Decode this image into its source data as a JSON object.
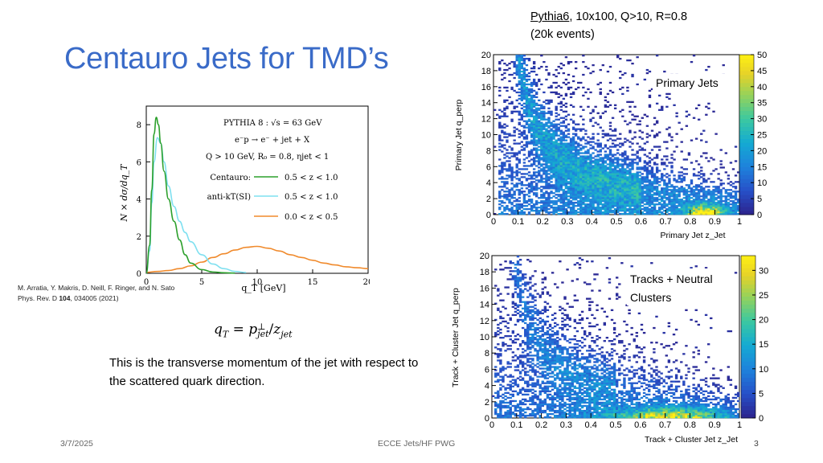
{
  "slide": {
    "title": "Centauro Jets for TMD’s",
    "sim_info": {
      "generator": "Pythia6",
      "line1_rest": ", 10x100, Q>10, R=0.8",
      "line2": "(20k events)"
    },
    "citation": {
      "line1": "M. Arratia, Y. Makris, D. Neill, F. Ringer, and N. Sato",
      "line2_prefix": "Phys. Rev. D ",
      "line2_bold": "104",
      "line2_suffix": ", 034005 (2021)"
    },
    "formula": "q_T = p⊥_jet / z_jet",
    "formula_parts": {
      "lhs": "q",
      "lhs_sub": "T",
      "eq": " = ",
      "p": "p",
      "p_sup": "⊥",
      "p_sub": "jet",
      "slash": "/",
      "z": "z",
      "z_sub": "jet"
    },
    "description": "This is the transverse momentum of the jet with respect to the scattered quark direction.",
    "footer": {
      "date": "3/7/2025",
      "label": "ECCE Jets/HF PWG",
      "page": "3"
    }
  },
  "chart_data": [
    {
      "type": "line",
      "title": "PYTHIA 8 : √s = 63 GeV",
      "annotations": [
        "PYTHIA 8 :  √s = 63 GeV",
        "e⁻p → e⁻ + jet + X",
        "Q > 10 GeV,  R₀ = 0.8,  ηjet < 1"
      ],
      "xlabel": "q_T [GeV]",
      "ylabel": "N × dσ/dq_T",
      "xlim": [
        0,
        20
      ],
      "ylim": [
        0,
        9
      ],
      "x_ticks": [
        0,
        5,
        10,
        15,
        20
      ],
      "y_ticks": [
        0,
        2,
        4,
        6,
        8
      ],
      "series": [
        {
          "name": "Centauro:",
          "range": "0.5 < z < 1.0",
          "color": "#2ca02c",
          "x": [
            0,
            0.3,
            0.5,
            0.7,
            0.9,
            1.1,
            1.3,
            1.6,
            2.0,
            2.5,
            3.0,
            3.5,
            4.0,
            5.0,
            6.0,
            7.0,
            8.0
          ],
          "y": [
            0,
            1.5,
            4.5,
            7.5,
            8.4,
            8.0,
            7.0,
            5.5,
            4.0,
            2.8,
            1.8,
            1.0,
            0.55,
            0.2,
            0.07,
            0.03,
            0.01
          ]
        },
        {
          "name": "anti-kT(SI)",
          "range": "0.5 < z < 1.0",
          "color": "#7fe0f0",
          "x": [
            0,
            0.3,
            0.5,
            0.7,
            1.0,
            1.3,
            1.6,
            2.0,
            2.5,
            3.0,
            3.5,
            4.0,
            5.0,
            6.0,
            7.0,
            8.0,
            9.0
          ],
          "y": [
            0,
            1.2,
            3.8,
            6.0,
            7.3,
            7.0,
            6.0,
            4.7,
            3.6,
            2.8,
            2.2,
            1.7,
            1.0,
            0.5,
            0.25,
            0.1,
            0.04
          ]
        },
        {
          "name": "",
          "range": "0.0 < z < 0.5",
          "color": "#f08a2c",
          "x": [
            0,
            1,
            2,
            3,
            4,
            5,
            6,
            7,
            8,
            9,
            10,
            11,
            12,
            13,
            14,
            15,
            16,
            17,
            18,
            19,
            20
          ],
          "y": [
            0.05,
            0.1,
            0.15,
            0.25,
            0.4,
            0.6,
            0.85,
            1.05,
            1.25,
            1.4,
            1.45,
            1.35,
            1.2,
            1.0,
            0.85,
            0.7,
            0.55,
            0.45,
            0.35,
            0.3,
            0.25
          ]
        }
      ]
    },
    {
      "type": "heatmap",
      "label": "Primary Jets",
      "xlabel": "Primary Jet z_Jet",
      "ylabel": "Primary Jet q_perp",
      "xlim": [
        0,
        1
      ],
      "ylim": [
        0,
        20
      ],
      "x_ticks": [
        0,
        0.1,
        0.2,
        0.3,
        0.4,
        0.5,
        0.6,
        0.7,
        0.8,
        0.9,
        1
      ],
      "y_ticks": [
        0,
        2,
        4,
        6,
        8,
        10,
        12,
        14,
        16,
        18,
        20
      ],
      "zlim": [
        0,
        50
      ],
      "z_ticks": [
        0,
        5,
        10,
        15,
        20,
        25,
        30,
        35,
        40,
        45,
        50
      ],
      "description": "Counts concentrated at high z (0.75-0.95) and low q_perp (<2); broad band along low z at higher q_perp."
    },
    {
      "type": "heatmap",
      "label": "Tracks + Neutral Clusters",
      "label_lines": [
        "Tracks + Neutral",
        "Clusters"
      ],
      "xlabel": "Track + Cluster Jet z_Jet",
      "ylabel": "Track + Cluster Jet q_perp",
      "xlim": [
        0,
        1
      ],
      "ylim": [
        0,
        20
      ],
      "x_ticks": [
        0,
        0.1,
        0.2,
        0.3,
        0.4,
        0.5,
        0.6,
        0.7,
        0.8,
        0.9,
        1
      ],
      "y_ticks": [
        0,
        2,
        4,
        6,
        8,
        10,
        12,
        14,
        16,
        18,
        20
      ],
      "zlim": [
        0,
        33
      ],
      "z_ticks": [
        0,
        5,
        10,
        15,
        20,
        25,
        30
      ],
      "description": "Counts concentrated at z 0.5-0.95 and q_perp < 2."
    }
  ]
}
